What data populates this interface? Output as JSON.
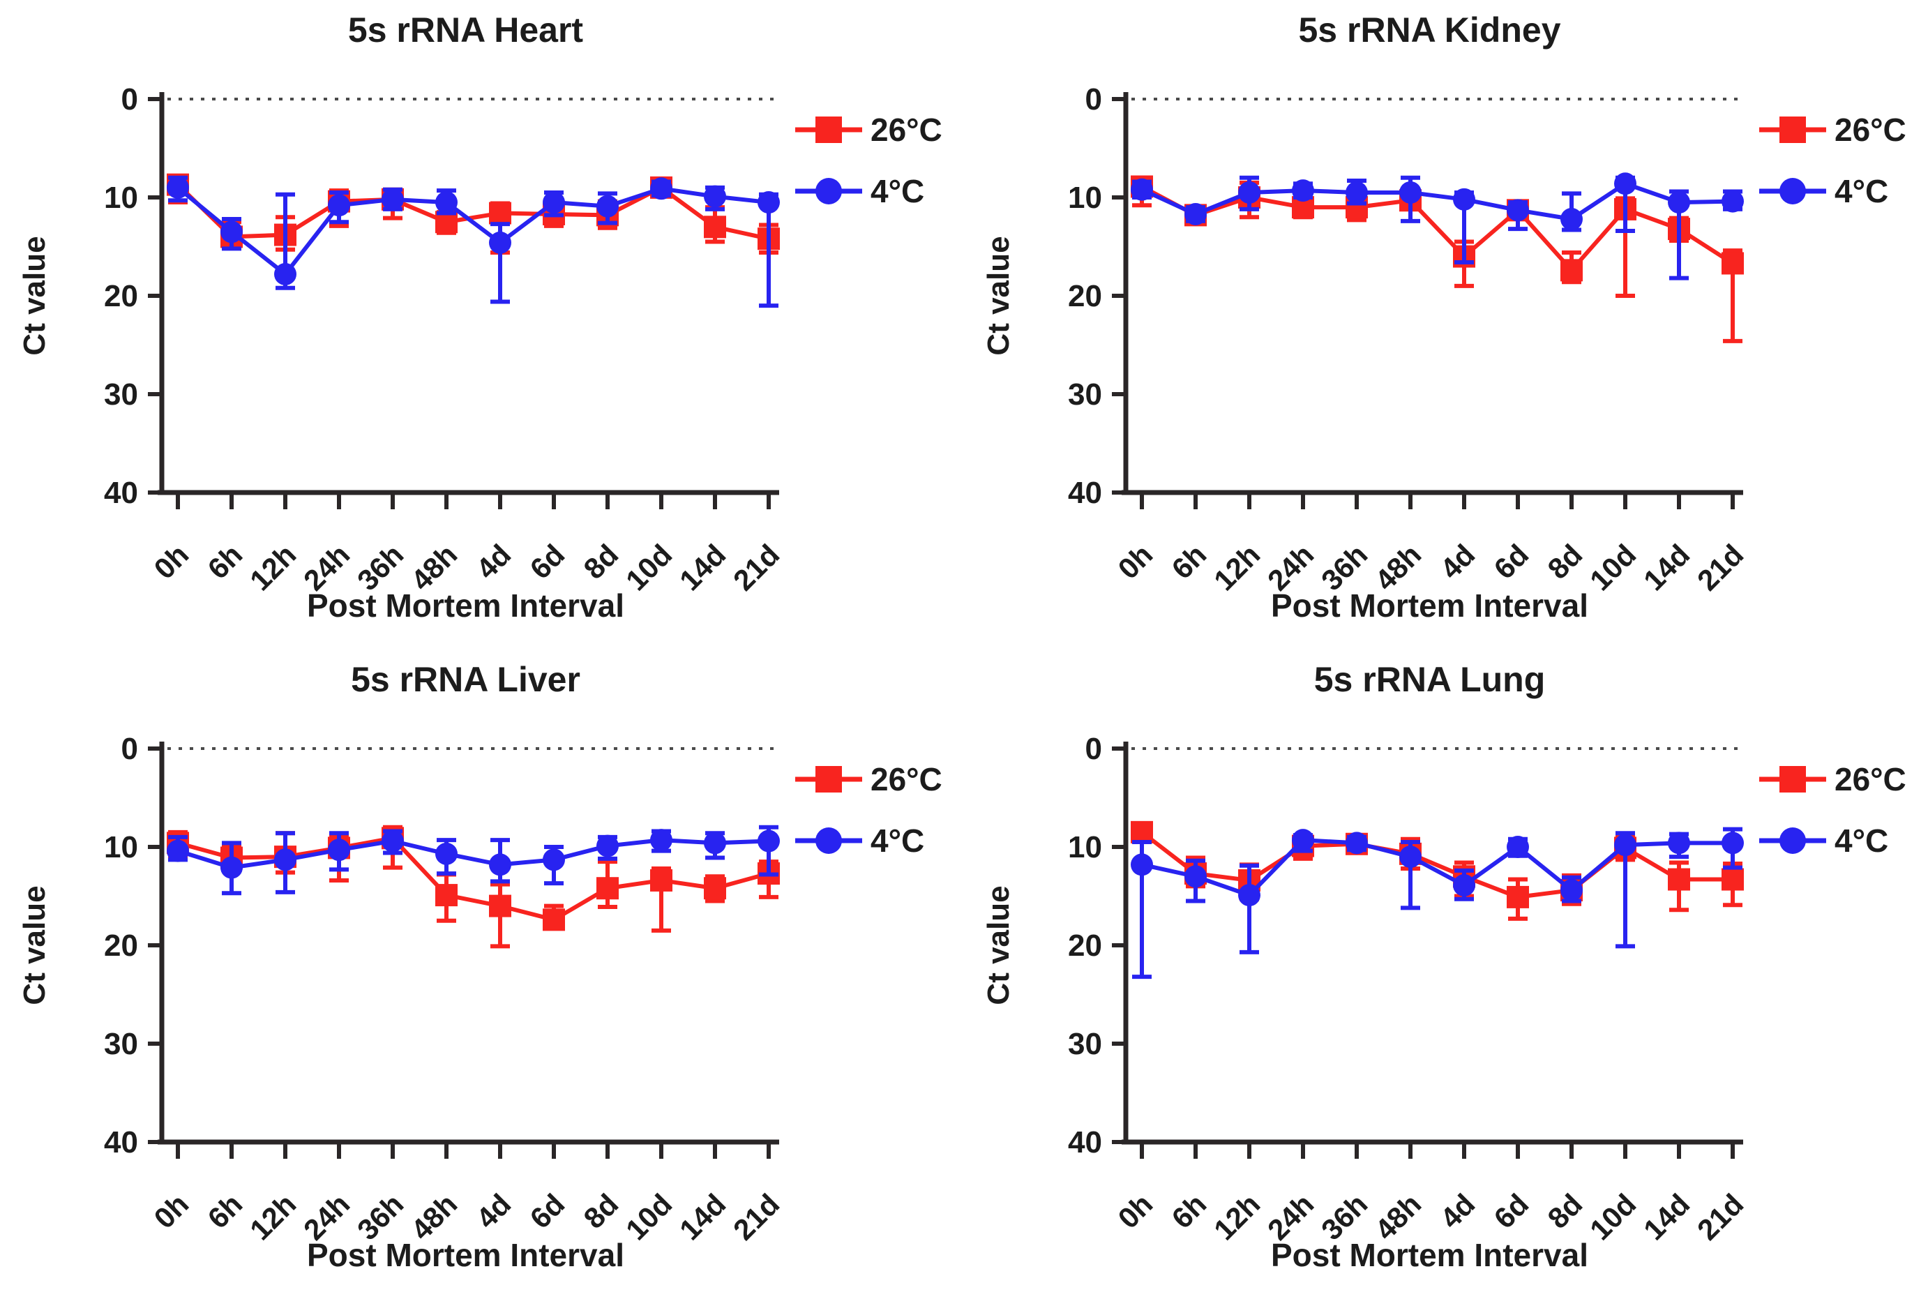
{
  "figure": {
    "background": "#ffffff",
    "text_color": "#1c1c1c",
    "axis_color": "#2a2627",
    "zero_line_color": "#4a4a4a"
  },
  "chart_data": [
    {
      "id": "heart",
      "type": "line",
      "title": "5s rRNA Heart",
      "xlabel": "Post Mortem Interval",
      "ylabel": "Ct value",
      "ylim": [
        0,
        40
      ],
      "y_ticks": [
        0,
        10,
        20,
        30,
        40
      ],
      "y_axis_reversed": true,
      "zero_line_dotted": true,
      "grid": false,
      "legend_position": "right-top",
      "categories": [
        "0h",
        "6h",
        "12h",
        "24h",
        "36h",
        "48h",
        "4d",
        "6d",
        "8d",
        "10d",
        "14d",
        "21d"
      ],
      "series": [
        {
          "name": "26°C",
          "color": "#f8241f",
          "marker": "square",
          "values": [
            8.7,
            14.0,
            13.8,
            10.4,
            10.2,
            12.5,
            11.6,
            11.7,
            11.8,
            9.0,
            13.0,
            14.2
          ],
          "err_min": [
            8.0,
            12.5,
            12.0,
            9.3,
            9.2,
            11.5,
            10.6,
            10.6,
            10.4,
            8.3,
            11.0,
            12.8
          ],
          "err_max": [
            10.5,
            15.1,
            15.3,
            12.9,
            12.1,
            13.6,
            15.6,
            12.9,
            13.1,
            9.8,
            14.5,
            15.6
          ]
        },
        {
          "name": "4°C",
          "color": "#2823f0",
          "marker": "circle",
          "values": [
            9.0,
            13.5,
            17.8,
            10.8,
            10.2,
            10.5,
            14.6,
            10.5,
            10.9,
            9.1,
            9.9,
            10.5
          ],
          "err_min": [
            8.0,
            12.2,
            9.7,
            9.5,
            9.2,
            9.3,
            12.7,
            9.5,
            9.6,
            8.4,
            9.0,
            9.7
          ],
          "err_max": [
            10.3,
            15.2,
            19.2,
            12.5,
            11.2,
            11.6,
            20.6,
            11.8,
            12.6,
            9.8,
            11.2,
            21.0
          ]
        }
      ]
    },
    {
      "id": "kidney",
      "type": "line",
      "title": "5s rRNA Kidney",
      "xlabel": "Post Mortem Interval",
      "ylabel": "Ct value",
      "ylim": [
        0,
        40
      ],
      "y_ticks": [
        0,
        10,
        20,
        30,
        40
      ],
      "y_axis_reversed": true,
      "zero_line_dotted": true,
      "grid": false,
      "legend_position": "right-top",
      "categories": [
        "0h",
        "6h",
        "12h",
        "24h",
        "36h",
        "48h",
        "4d",
        "6d",
        "8d",
        "10d",
        "14d",
        "21d"
      ],
      "series": [
        {
          "name": "26°C",
          "color": "#f8241f",
          "marker": "square",
          "values": [
            8.9,
            11.8,
            10.0,
            11.0,
            11.0,
            10.3,
            16.0,
            11.3,
            17.4,
            11.2,
            13.2,
            16.7
          ],
          "err_min": [
            8.0,
            11.1,
            8.5,
            10.0,
            10.0,
            9.8,
            14.5,
            10.6,
            15.6,
            10.1,
            12.1,
            15.4
          ],
          "err_max": [
            10.8,
            12.5,
            12.0,
            12.0,
            12.3,
            10.9,
            19.0,
            12.0,
            18.6,
            20.0,
            14.4,
            24.6
          ]
        },
        {
          "name": "4°C",
          "color": "#2823f0",
          "marker": "circle",
          "values": [
            9.2,
            11.7,
            9.5,
            9.3,
            9.5,
            9.5,
            10.2,
            11.3,
            12.2,
            8.6,
            10.5,
            10.4
          ],
          "err_min": [
            8.4,
            11.0,
            8.0,
            8.6,
            8.3,
            8.0,
            9.5,
            10.5,
            9.6,
            8.0,
            9.4,
            9.4
          ],
          "err_max": [
            10.0,
            12.4,
            11.2,
            10.0,
            10.6,
            12.4,
            16.6,
            13.2,
            13.3,
            13.4,
            18.2,
            11.2
          ]
        }
      ]
    },
    {
      "id": "liver",
      "type": "line",
      "title": "5s rRNA Liver",
      "xlabel": "Post Mortem Interval",
      "ylabel": "Ct value",
      "ylim": [
        0,
        40
      ],
      "y_ticks": [
        0,
        10,
        20,
        30,
        40
      ],
      "y_axis_reversed": true,
      "zero_line_dotted": true,
      "grid": false,
      "legend_position": "right-top",
      "categories": [
        "0h",
        "6h",
        "12h",
        "24h",
        "36h",
        "48h",
        "4d",
        "6d",
        "8d",
        "10d",
        "14d",
        "21d"
      ],
      "series": [
        {
          "name": "26°C",
          "color": "#f8241f",
          "marker": "square",
          "values": [
            9.6,
            11.1,
            11.0,
            10.1,
            9.1,
            14.9,
            16.0,
            17.4,
            14.2,
            13.4,
            14.2,
            12.7
          ],
          "err_min": [
            8.5,
            10.0,
            8.6,
            9.0,
            8.0,
            12.8,
            13.8,
            16.0,
            11.5,
            12.2,
            13.0,
            11.5
          ],
          "err_max": [
            11.0,
            12.4,
            12.6,
            13.4,
            12.1,
            17.5,
            20.1,
            18.3,
            16.1,
            18.5,
            15.5,
            15.1
          ]
        },
        {
          "name": "4°C",
          "color": "#2823f0",
          "marker": "circle",
          "values": [
            10.4,
            12.1,
            11.3,
            10.3,
            9.4,
            10.7,
            11.8,
            11.3,
            9.9,
            9.3,
            9.6,
            9.4
          ],
          "err_min": [
            9.0,
            9.6,
            8.6,
            8.6,
            8.4,
            9.3,
            9.3,
            10.0,
            9.0,
            8.4,
            8.6,
            8.0
          ],
          "err_max": [
            11.3,
            14.7,
            14.6,
            12.3,
            10.6,
            12.7,
            13.5,
            13.7,
            11.2,
            10.4,
            11.1,
            12.8
          ]
        }
      ]
    },
    {
      "id": "lung",
      "type": "line",
      "title": "5s rRNA Lung",
      "xlabel": "Post Mortem Interval",
      "ylabel": "Ct value",
      "ylim": [
        0,
        40
      ],
      "y_ticks": [
        0,
        10,
        20,
        30,
        40
      ],
      "y_axis_reversed": true,
      "zero_line_dotted": true,
      "grid": false,
      "legend_position": "right-top",
      "categories": [
        "0h",
        "6h",
        "12h",
        "24h",
        "36h",
        "48h",
        "4d",
        "6d",
        "8d",
        "10d",
        "14d",
        "21d"
      ],
      "series": [
        {
          "name": "26°C",
          "color": "#f8241f",
          "marker": "square",
          "values": [
            8.5,
            12.7,
            13.4,
            9.9,
            9.7,
            10.7,
            13.0,
            15.1,
            14.4,
            10.1,
            13.3,
            13.3
          ],
          "err_min": [
            8.0,
            11.1,
            11.8,
            9.1,
            9.0,
            9.2,
            11.6,
            13.3,
            12.9,
            9.0,
            11.6,
            11.7
          ],
          "err_max": [
            9.4,
            14.0,
            15.3,
            11.2,
            10.5,
            12.2,
            15.0,
            17.3,
            15.8,
            11.3,
            16.4,
            15.9
          ]
        },
        {
          "name": "4°C",
          "color": "#2823f0",
          "marker": "circle",
          "values": [
            11.8,
            13.0,
            14.9,
            9.3,
            9.6,
            11.0,
            13.9,
            10.0,
            14.4,
            9.8,
            9.6,
            9.6
          ],
          "err_min": [
            9.5,
            11.4,
            11.9,
            8.8,
            9.0,
            9.5,
            12.4,
            9.2,
            13.1,
            8.6,
            8.7,
            8.2
          ],
          "err_max": [
            23.2,
            15.5,
            20.7,
            10.4,
            10.3,
            16.2,
            15.3,
            10.9,
            15.5,
            20.1,
            11.0,
            12.1
          ]
        }
      ]
    }
  ]
}
